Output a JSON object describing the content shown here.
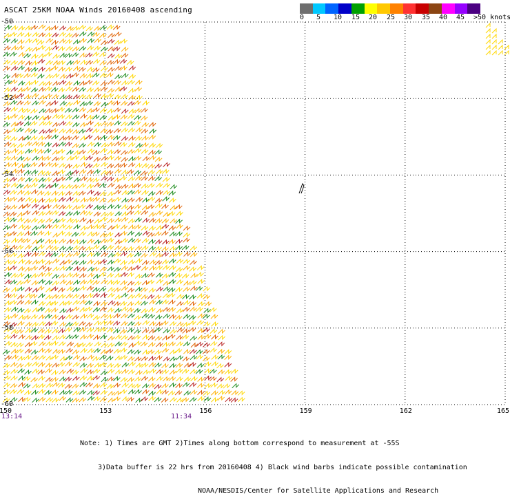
{
  "title": "ASCAT 25KM NOAA Winds 20160408 ascending",
  "colorbar": {
    "colors": [
      "#6e6e6e",
      "#00c8ff",
      "#0064ff",
      "#0000c8",
      "#00a000",
      "#ffff00",
      "#ffc800",
      "#ff8200",
      "#ff3232",
      "#c80000",
      "#8b4513",
      "#ff00ff",
      "#9600ff",
      "#4b0082"
    ],
    "labels": [
      "0",
      "5",
      "10",
      "15",
      "20",
      "25",
      "30",
      "35",
      "40",
      "45",
      ">50 knots"
    ]
  },
  "map": {
    "lon_min": 150,
    "lon_max": 165,
    "lat_top": -50,
    "lat_bottom": -60,
    "lon_ticks": [
      "150",
      "153",
      "156",
      "159",
      "162",
      "165"
    ],
    "lat_ticks": [
      "-50",
      "-52",
      "-54",
      "-56",
      "-58",
      "-60"
    ],
    "times": [
      "13:14",
      "11:34"
    ]
  },
  "notes": [
    "Note: 1) Times are GMT 2)Times along bottom correspond to measurement at -55S",
    "3)Data buffer is 22 hrs from 20160408 4) Black wind barbs indicate possible contamination",
    "NOAA/NESDIS/Center for Satellite Applications and Research"
  ]
}
